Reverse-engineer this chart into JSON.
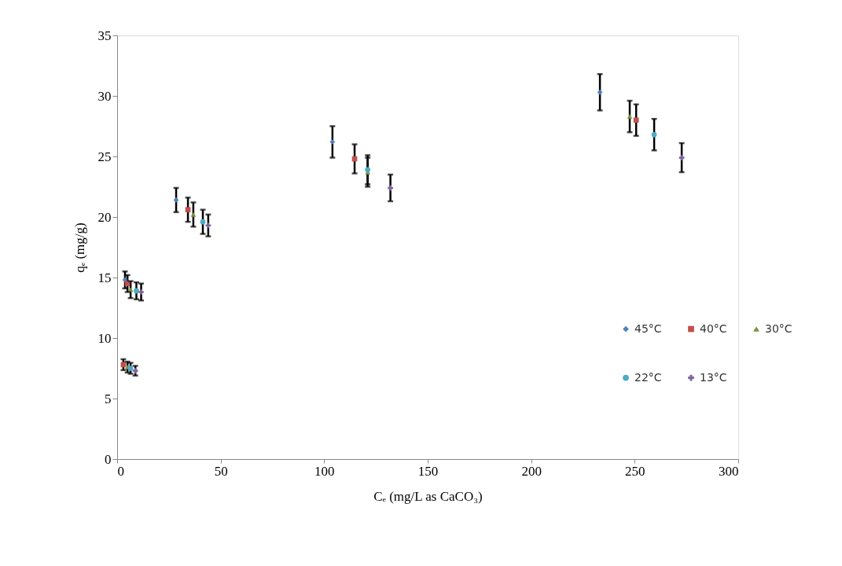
{
  "chart_data": {
    "type": "scatter",
    "xlabel": "Cₑ  (mg/L as CaCO₃)",
    "ylabel": "qₑ  (mg/g)",
    "xlim": [
      0,
      300
    ],
    "xticks": [
      0,
      50,
      100,
      150,
      200,
      250,
      300
    ],
    "ylim": [
      0,
      35
    ],
    "yticks": [
      0,
      5,
      10,
      15,
      20,
      25,
      30,
      35
    ],
    "grid": false,
    "legend": "right",
    "series": [
      {
        "name": "45°C",
        "color": "#4f81bd",
        "marker": "diamond",
        "x": [
          null,
          3.8,
          28.5,
          104,
          233.2
        ],
        "values": [
          null,
          14.8,
          21.4,
          26.2,
          30.3
        ],
        "errors": [
          null,
          0.7,
          1.0,
          1.3,
          1.5
        ]
      },
      {
        "name": "40°C",
        "color": "#c0504d",
        "marker": "square",
        "x": [
          3,
          5,
          34.2,
          114.7,
          250.7
        ],
        "values": [
          7.8,
          14.5,
          20.6,
          24.8,
          28.0
        ],
        "errors": [
          0.45,
          0.7,
          1.0,
          1.2,
          1.3
        ]
      },
      {
        "name": "30°C",
        "color": "#77933c",
        "marker": "triangle",
        "x": [
          5,
          6.5,
          36.8,
          121,
          247.6
        ],
        "values": [
          7.6,
          14.0,
          20.2,
          23.7,
          28.3
        ],
        "errors": [
          0.45,
          0.7,
          1.0,
          1.2,
          1.3
        ]
      },
      {
        "name": "22°C",
        "color": "#4bacc6",
        "marker": "circle",
        "x": [
          6.5,
          9.3,
          41.4,
          121,
          259.4
        ],
        "values": [
          7.5,
          13.9,
          19.6,
          23.9,
          26.8
        ],
        "errors": [
          0.45,
          0.7,
          1.0,
          1.2,
          1.3
        ]
      },
      {
        "name": "13°C",
        "color": "#8064a2",
        "marker": "cross",
        "x": [
          8.8,
          11.6,
          44,
          132,
          272.7
        ],
        "values": [
          7.3,
          13.8,
          19.3,
          22.4,
          24.9
        ],
        "errors": [
          0.4,
          0.7,
          0.9,
          1.1,
          1.2
        ]
      }
    ]
  }
}
